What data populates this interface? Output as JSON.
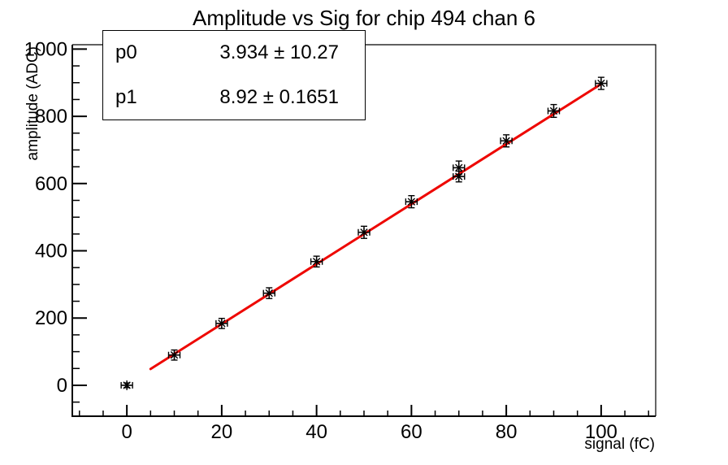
{
  "page": {
    "background": "#ffffff"
  },
  "stats_box": {
    "rows": [
      {
        "param": "p0",
        "value": "3.934 ± 10.27"
      },
      {
        "param": "p1",
        "value": "8.92 ± 0.1651"
      }
    ]
  },
  "chart_data": {
    "type": "scatter",
    "title": "Amplitude vs Sig for chip 494 chan 6",
    "xlabel": "signal (fC)",
    "ylabel": "amplitude (ADC)",
    "xlim": [
      -11.5,
      111.5
    ],
    "ylim": [
      -92,
      1013
    ],
    "x_ticks": {
      "major": [
        0,
        20,
        40,
        60,
        80,
        100
      ],
      "minor_step": 5
    },
    "y_ticks": {
      "major": [
        0,
        200,
        400,
        600,
        800,
        1000
      ],
      "minor_step": 50
    },
    "grid": false,
    "legend": null,
    "marker": "star-with-error-bars",
    "marker_color": "#000000",
    "points": [
      {
        "x": 0,
        "y": 0,
        "xerr": 1.2,
        "yerr": 7
      },
      {
        "x": 10,
        "y": 90,
        "xerr": 1.2,
        "yerr": 15
      },
      {
        "x": 20,
        "y": 184,
        "xerr": 1.2,
        "yerr": 15
      },
      {
        "x": 30,
        "y": 274,
        "xerr": 1.2,
        "yerr": 16
      },
      {
        "x": 40,
        "y": 368,
        "xerr": 1.2,
        "yerr": 16
      },
      {
        "x": 50,
        "y": 455,
        "xerr": 1.2,
        "yerr": 18
      },
      {
        "x": 60,
        "y": 546,
        "xerr": 1.2,
        "yerr": 18
      },
      {
        "x": 70,
        "y": 621,
        "xerr": 1.2,
        "yerr": 16
      },
      {
        "x": 70,
        "y": 647,
        "xerr": 1.2,
        "yerr": 20
      },
      {
        "x": 80,
        "y": 727,
        "xerr": 1.2,
        "yerr": 18
      },
      {
        "x": 90,
        "y": 816,
        "xerr": 1.2,
        "yerr": 19
      },
      {
        "x": 100,
        "y": 898,
        "xerr": 1.2,
        "yerr": 18
      }
    ],
    "fit_line": {
      "type": "linear",
      "p0": 3.934,
      "p1": 8.92,
      "x_range": [
        5,
        100
      ],
      "color": "#ee0702",
      "width": 3
    }
  }
}
